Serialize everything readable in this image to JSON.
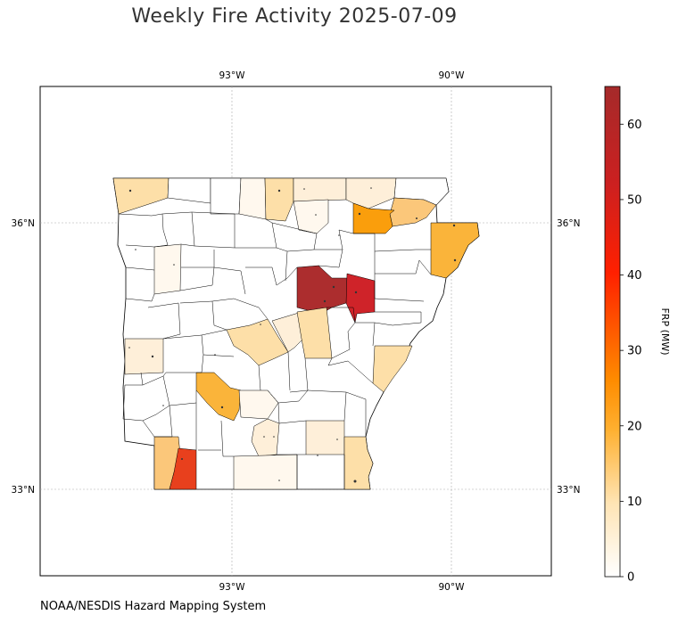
{
  "title": "Weekly Fire Activity 2025-07-09",
  "credit": "NOAA/NESDIS Hazard Mapping System",
  "map": {
    "region": "Arkansas counties",
    "gridlines": true,
    "lon_ticks": [
      "93°W",
      "90°W"
    ],
    "lat_ticks": [
      "36°N",
      "33°N"
    ],
    "colors": {
      "c0": "#ffffff",
      "c2": "#fff8ee",
      "c5": "#feefd9",
      "c9": "#fddfa8",
      "c12": "#fbc77a",
      "c16": "#fab43a",
      "c20": "#fa9e0c",
      "c45": "#e8401d",
      "c50": "#cf2329",
      "c65": "#ac2d2e"
    }
  },
  "colorbar": {
    "label": "FRP (MW)",
    "min": 0,
    "max": 65,
    "ticks": [
      "0",
      "10",
      "20",
      "30",
      "40",
      "50",
      "60"
    ],
    "stops": [
      "#ffffff",
      "#ffe4b4",
      "#ffb030",
      "#ff8c00",
      "#ff2000",
      "#cc2020",
      "#a52a2a"
    ]
  }
}
